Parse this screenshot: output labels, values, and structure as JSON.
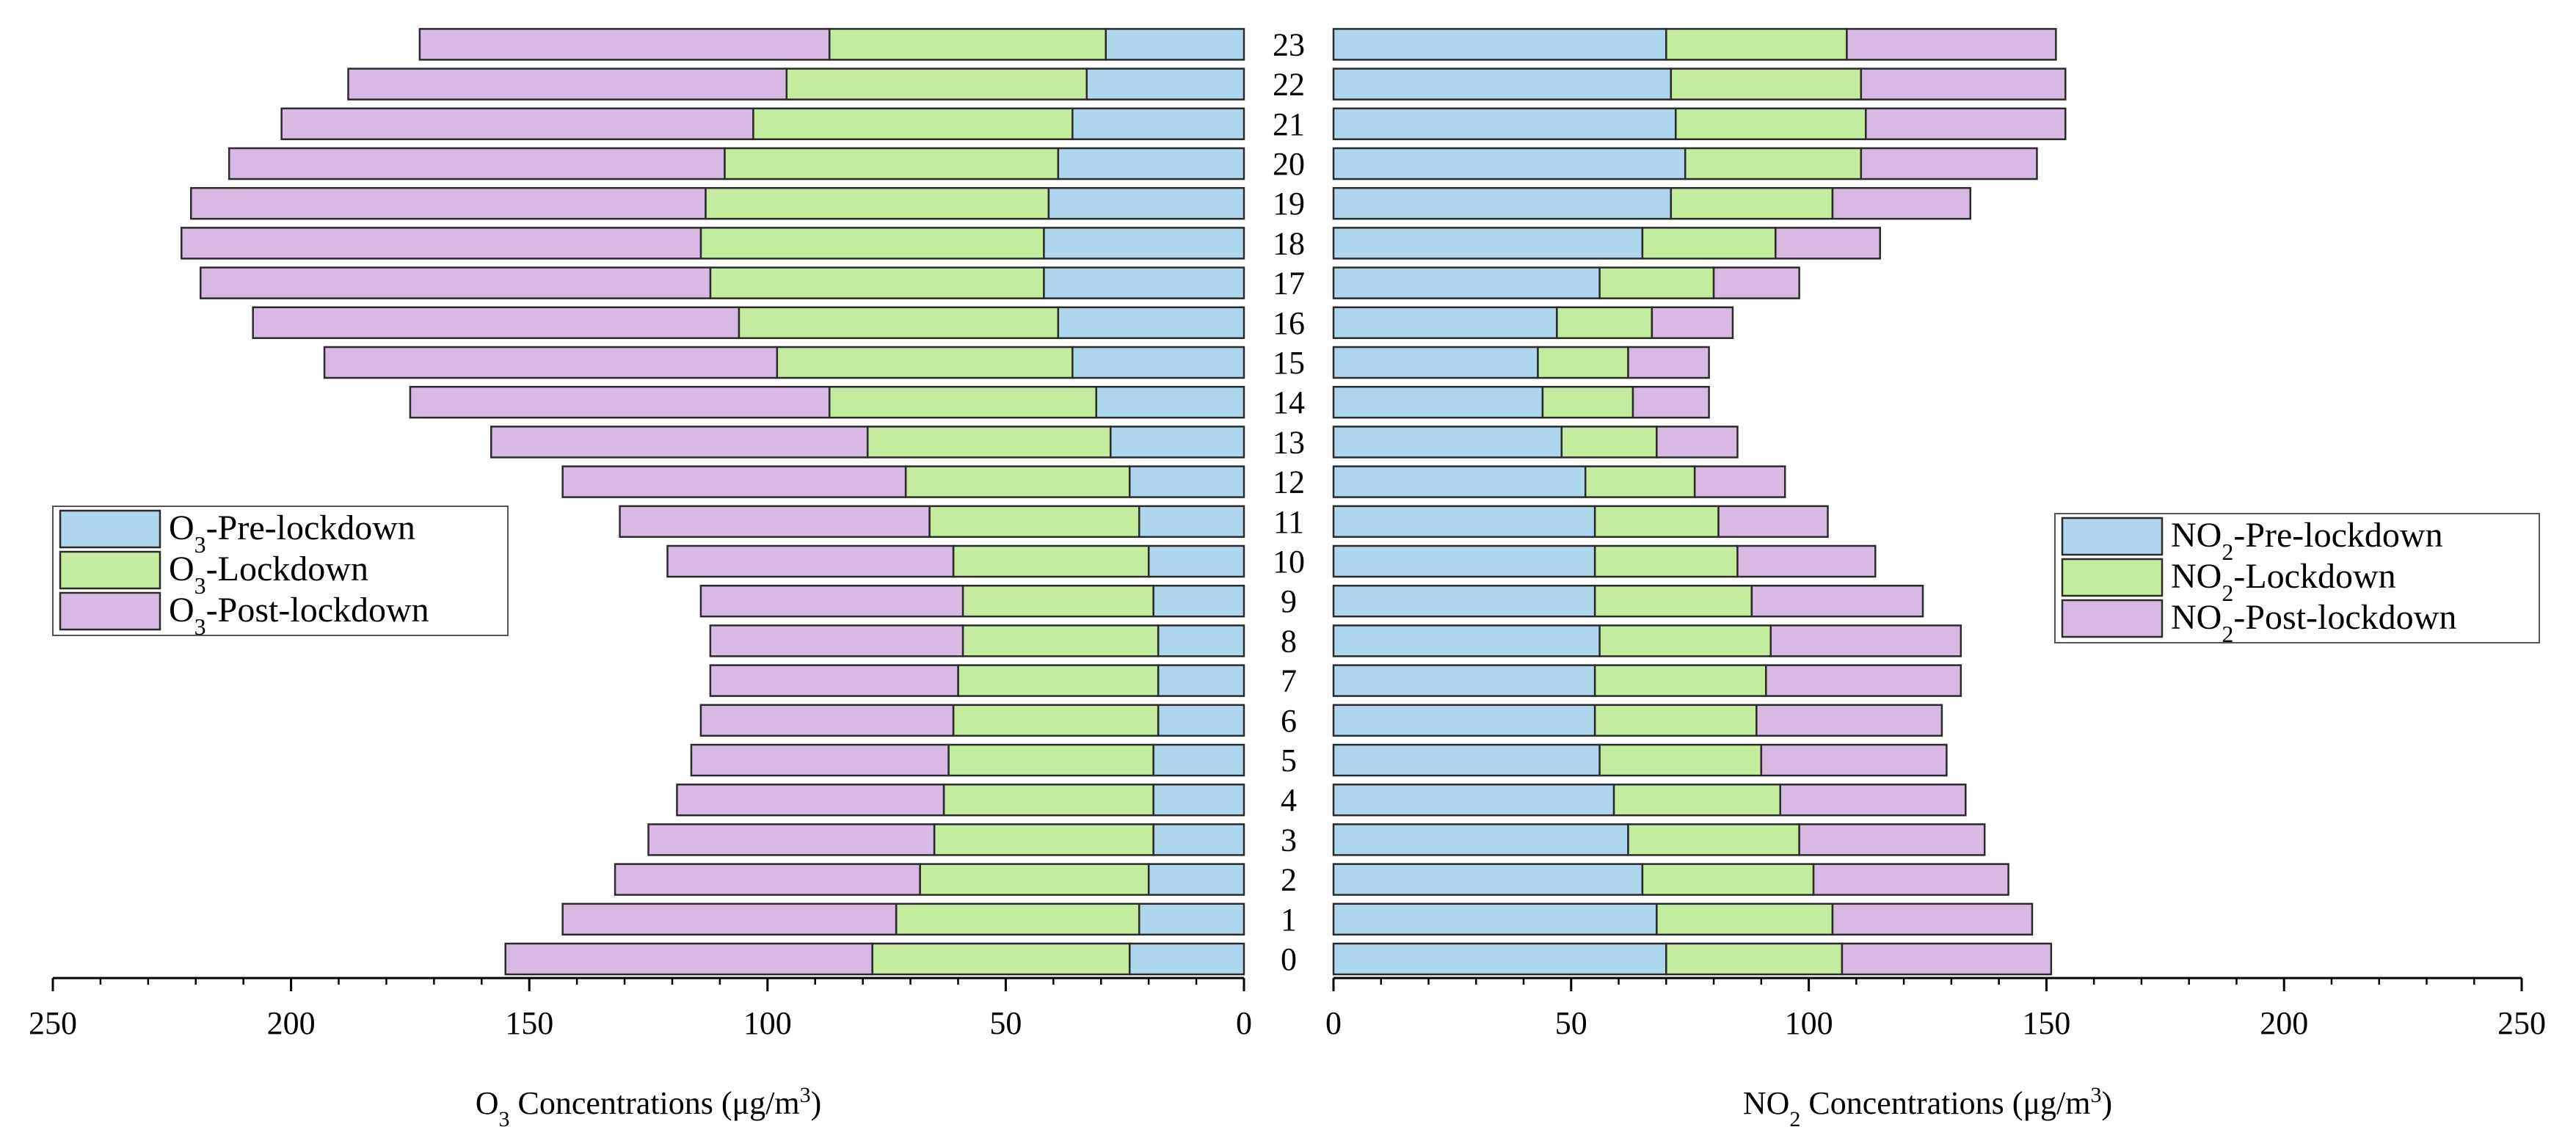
{
  "chart_data": [
    {
      "type": "bar",
      "orientation": "horizontal",
      "stacked": true,
      "direction": "leftward",
      "categories": [
        "0",
        "1",
        "2",
        "3",
        "4",
        "5",
        "6",
        "7",
        "8",
        "9",
        "10",
        "11",
        "12",
        "13",
        "14",
        "15",
        "16",
        "17",
        "18",
        "19",
        "20",
        "21",
        "22",
        "23"
      ],
      "series": [
        {
          "name": "O₃-Pre-lockdown",
          "color": "#aed6ec",
          "values": [
            24,
            22,
            20,
            19,
            19,
            19,
            18,
            18,
            18,
            19,
            20,
            22,
            24,
            28,
            31,
            36,
            39,
            42,
            42,
            41,
            39,
            36,
            33,
            29
          ]
        },
        {
          "name": "O₃-Lockdown",
          "color": "#c3ec9e",
          "values": [
            54,
            51,
            48,
            46,
            44,
            43,
            43,
            42,
            41,
            40,
            41,
            44,
            47,
            51,
            56,
            62,
            67,
            70,
            72,
            72,
            70,
            67,
            63,
            58
          ]
        },
        {
          "name": "O₃-Post-lockdown",
          "color": "#d8b9e4",
          "values": [
            77,
            70,
            64,
            60,
            56,
            54,
            53,
            52,
            53,
            55,
            60,
            65,
            72,
            79,
            88,
            95,
            102,
            107,
            109,
            108,
            104,
            99,
            92,
            86
          ]
        }
      ],
      "xlabel_main": "O",
      "xlabel_sub": "3",
      "xlabel_rest": " Concentrations (μg/m",
      "xlabel_sup": "3",
      "xlabel_end": ")",
      "xlim": [
        0,
        250
      ],
      "xticks": [
        250,
        200,
        150,
        100,
        50,
        0
      ],
      "legend": {
        "position": "middle-left",
        "entries": [
          "O₃-Pre-lockdown",
          "O₃-Lockdown",
          "O₃-Post-lockdown"
        ]
      }
    },
    {
      "type": "bar",
      "orientation": "horizontal",
      "stacked": true,
      "direction": "rightward",
      "categories": [
        "0",
        "1",
        "2",
        "3",
        "4",
        "5",
        "6",
        "7",
        "8",
        "9",
        "10",
        "11",
        "12",
        "13",
        "14",
        "15",
        "16",
        "17",
        "18",
        "19",
        "20",
        "21",
        "22",
        "23"
      ],
      "series": [
        {
          "name": "NO₂-Pre-lockdown",
          "color": "#aed6ec",
          "values": [
            70,
            68,
            65,
            62,
            59,
            56,
            55,
            55,
            56,
            55,
            55,
            55,
            53,
            48,
            44,
            43,
            47,
            56,
            65,
            71,
            74,
            72,
            71,
            70
          ]
        },
        {
          "name": "NO₂-Lockdown",
          "color": "#c3ec9e",
          "values": [
            37,
            37,
            36,
            36,
            35,
            34,
            34,
            36,
            36,
            33,
            30,
            26,
            23,
            20,
            19,
            19,
            20,
            24,
            28,
            34,
            37,
            40,
            40,
            38
          ]
        },
        {
          "name": "NO₂-Post-lockdown",
          "color": "#d8b9e4",
          "values": [
            44,
            42,
            41,
            39,
            39,
            39,
            39,
            41,
            40,
            36,
            29,
            23,
            19,
            17,
            16,
            17,
            17,
            18,
            22,
            29,
            37,
            42,
            43,
            44
          ]
        }
      ],
      "xlabel_main": "NO",
      "xlabel_sub": "2",
      "xlabel_rest": " Concentrations (μg/m",
      "xlabel_sup": "3",
      "xlabel_end": ")",
      "xlim": [
        0,
        250
      ],
      "xticks": [
        0,
        50,
        100,
        150,
        200,
        250
      ],
      "legend": {
        "position": "middle-right",
        "entries": [
          "NO₂-Pre-lockdown",
          "NO₂-Lockdown",
          "NO₂-Post-lockdown"
        ]
      }
    }
  ],
  "legend_left": [
    {
      "prefix": "O",
      "sub": "3",
      "rest": "-Pre-lockdown",
      "color": "#aed6ec"
    },
    {
      "prefix": "O",
      "sub": "3",
      "rest": "-Lockdown",
      "color": "#c3ec9e"
    },
    {
      "prefix": "O",
      "sub": "3",
      "rest": "-Post-lockdown",
      "color": "#d8b9e4"
    }
  ],
  "legend_right": [
    {
      "prefix": "NO",
      "sub": "2",
      "rest": "-Pre-lockdown",
      "color": "#aed6ec"
    },
    {
      "prefix": "NO",
      "sub": "2",
      "rest": "-Lockdown",
      "color": "#c3ec9e"
    },
    {
      "prefix": "NO",
      "sub": "2",
      "rest": "-Post-lockdown",
      "color": "#d8b9e4"
    }
  ]
}
